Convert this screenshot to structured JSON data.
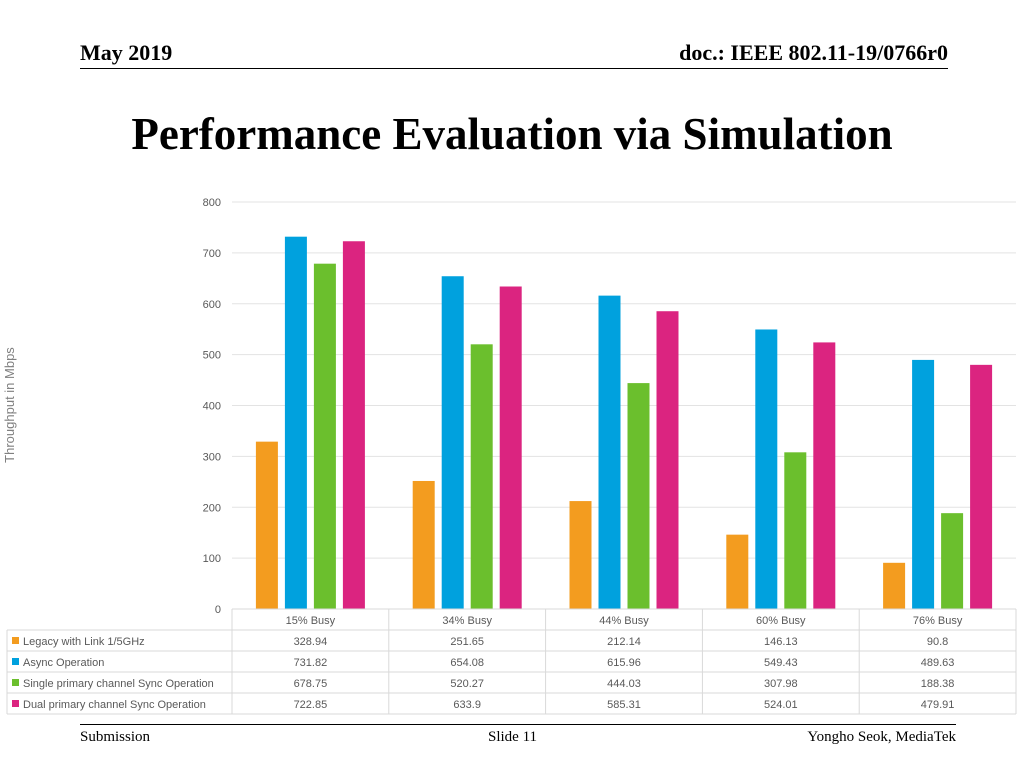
{
  "header": {
    "date": "May 2019",
    "doc": "doc.: IEEE 802.11-19/0766r0"
  },
  "title": "Performance Evaluation via Simulation",
  "footer": {
    "left": "Submission",
    "center": "Slide 11",
    "right": "Yongho Seok, MediaTek"
  },
  "colors": {
    "legacy": "#F39C1F",
    "async": "#00A1DE",
    "single": "#6BBF2D",
    "dual": "#DB2480",
    "grid": "#E3E3E3",
    "text": "#595959"
  },
  "chart_data": {
    "type": "bar",
    "title": "",
    "xlabel": "",
    "ylabel": "Throughput in Mbps",
    "ylim": [
      0,
      800
    ],
    "yticks": [
      0,
      100,
      200,
      300,
      400,
      500,
      600,
      700,
      800
    ],
    "categories": [
      "15% Busy",
      "34% Busy",
      "44% Busy",
      "60% Busy",
      "76% Busy"
    ],
    "series": [
      {
        "name": "Legacy with Link 1/5GHz",
        "color": "#F39C1F",
        "values": [
          328.94,
          251.65,
          212.14,
          146.13,
          90.8
        ]
      },
      {
        "name": "Async Operation",
        "color": "#00A1DE",
        "values": [
          731.82,
          654.08,
          615.96,
          549.43,
          489.63
        ]
      },
      {
        "name": "Single primary channel Sync Operation",
        "color": "#6BBF2D",
        "values": [
          678.75,
          520.27,
          444.03,
          307.98,
          188.38
        ]
      },
      {
        "name": "Dual primary channel Sync Operation",
        "color": "#DB2480",
        "values": [
          722.85,
          633.9,
          585.31,
          524.01,
          479.91
        ]
      }
    ],
    "data_table": [
      [
        "328.94",
        "251.65",
        "212.14",
        "146.13",
        "90.8"
      ],
      [
        "731.82",
        "654.08",
        "615.96",
        "549.43",
        "489.63"
      ],
      [
        "678.75",
        "520.27",
        "444.03",
        "307.98",
        "188.38"
      ],
      [
        "722.85",
        "633.9",
        "585.31",
        "524.01",
        "479.91"
      ]
    ]
  }
}
